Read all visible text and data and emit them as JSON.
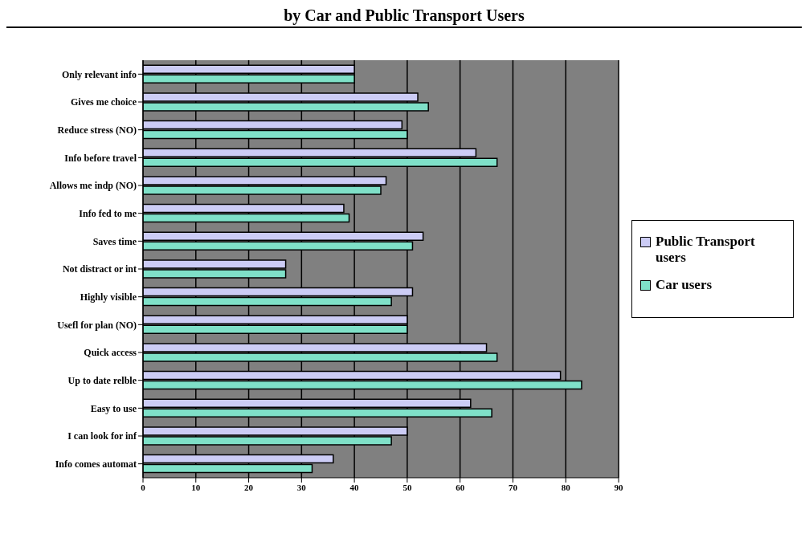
{
  "chart_data": {
    "type": "bar",
    "orientation": "horizontal",
    "title": "by Car and Public Transport Users",
    "categories": [
      "Only relevant info",
      "Gives me choice",
      "Reduce stress (NO)",
      "Info before travel",
      "Allows me indp (NO)",
      "Info fed to me",
      "Saves time",
      "Not distract or int",
      "Highly visible",
      "Usefl for plan (NO)",
      "Quick access",
      "Up to date relble",
      "Easy to use",
      "I can look for inf",
      "Info comes automat"
    ],
    "series": [
      {
        "name": "Public Transport users",
        "color": "#ccccf5",
        "values": [
          40,
          52,
          49,
          63,
          46,
          38,
          53,
          27,
          51,
          50,
          65,
          79,
          62,
          50,
          36
        ]
      },
      {
        "name": "Car users",
        "color": "#7fe0c8",
        "values": [
          40,
          54,
          50,
          67,
          45,
          39,
          51,
          27,
          47,
          50,
          67,
          83,
          66,
          47,
          32
        ]
      }
    ],
    "xlim": [
      0,
      90
    ],
    "xticks": [
      0,
      10,
      20,
      30,
      40,
      50,
      60,
      70,
      80,
      90
    ],
    "grid": "x",
    "legend": "right"
  }
}
